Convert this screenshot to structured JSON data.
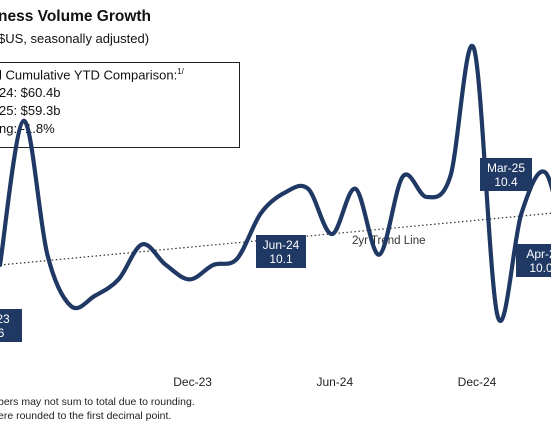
{
  "header": {
    "title": "ness Volume Growth",
    "subtitle": "$US, seasonally adjusted)"
  },
  "ytd_box": {
    "title": "l Cumulative YTD Comparison:",
    "title_sup": "1/",
    "line1": "24: $60.4b",
    "line2": "25: $59.3b",
    "line3": "ng: -1.8%"
  },
  "footnotes": {
    "line1": "bers may not sum to total due to rounding.",
    "line2": "ere rounded to the first decimal point."
  },
  "colors": {
    "series": "#1f3864",
    "trend": "#333333",
    "callout_bg": "#1f3864"
  },
  "chart_data": {
    "type": "line",
    "title": "ness Volume Growth",
    "subtitle": "$US, seasonally adjusted)",
    "x_tick_labels": [
      "Dec-23",
      "Jun-24",
      "Dec-24"
    ],
    "grid": false,
    "series": [
      {
        "x": [
          "Apr-23",
          "May-23",
          "Jun-23",
          "Jul-23",
          "Aug-23",
          "Sep-23",
          "Oct-23",
          "Nov-23",
          "Dec-23",
          "Jan-24",
          "Feb-24",
          "Mar-24",
          "Apr-24",
          "May-24",
          "Jun-24",
          "Jul-24",
          "Aug-24",
          "Sep-24",
          "Oct-24",
          "Nov-24",
          "Dec-24",
          "Jan-25",
          "Feb-25",
          "Mar-25",
          "Apr-25",
          "May-25"
        ],
        "values": [
          9.95,
          10.65,
          10.0,
          9.75,
          9.8,
          9.88,
          10.05,
          9.95,
          9.88,
          9.95,
          9.98,
          10.2,
          10.3,
          10.32,
          10.1,
          10.32,
          10.0,
          10.38,
          10.28,
          10.38,
          11.0,
          9.7,
          10.2,
          10.4,
          10.05,
          10.22
        ]
      },
      {
        "name": "2yr Trend Line",
        "x": [
          "Apr-23",
          "May-25"
        ],
        "values": [
          9.95,
          10.22
        ]
      }
    ],
    "annotations": [
      {
        "month": "Apr-23",
        "label": "-23",
        "value_label": "6"
      },
      {
        "month": "Jun-24",
        "label": "Jun-24",
        "value_label": "10.1"
      },
      {
        "month": "Mar-25",
        "label": "Mar-25",
        "value_label": "10.4"
      },
      {
        "month": "Apr-25",
        "label": "Apr-2",
        "value_label": "10.0"
      }
    ],
    "trend_label": "2yr Trend Line"
  }
}
